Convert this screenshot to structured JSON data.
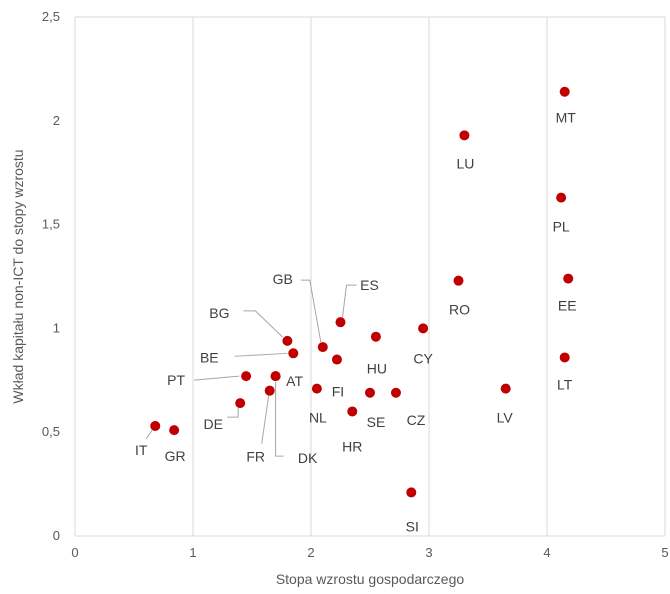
{
  "chart_data": {
    "type": "scatter",
    "title": "",
    "xlabel": "Stopa wzrostu gospodarczego",
    "ylabel": "Wkład kapitału non-ICT do stopy wzrostu",
    "xlim": [
      0,
      5
    ],
    "ylim": [
      0,
      2.5
    ],
    "x_ticks": [
      "0",
      "1",
      "2",
      "3",
      "4",
      "5"
    ],
    "y_ticks": [
      "0",
      "0,5",
      "1",
      "1,5",
      "2",
      "2,5"
    ],
    "grid": "vertical",
    "marker_color": "#c00000",
    "points": [
      {
        "label": "IT",
        "x": 0.68,
        "y": 0.53
      },
      {
        "label": "GR",
        "x": 0.84,
        "y": 0.51
      },
      {
        "label": "DE",
        "x": 1.4,
        "y": 0.64
      },
      {
        "label": "PT",
        "x": 1.45,
        "y": 0.77
      },
      {
        "label": "FR",
        "x": 1.65,
        "y": 0.7
      },
      {
        "label": "DK",
        "x": 1.7,
        "y": 0.77
      },
      {
        "label": "BG",
        "x": 1.8,
        "y": 0.94
      },
      {
        "label": "BE",
        "x": 1.85,
        "y": 0.88
      },
      {
        "label": "AT",
        "x": 1.7,
        "y": 0.77
      },
      {
        "label": "NL",
        "x": 2.05,
        "y": 0.71
      },
      {
        "label": "GB",
        "x": 2.1,
        "y": 0.91
      },
      {
        "label": "FI",
        "x": 2.22,
        "y": 0.85
      },
      {
        "label": "ES",
        "x": 2.25,
        "y": 1.03
      },
      {
        "label": "HR",
        "x": 2.35,
        "y": 0.6
      },
      {
        "label": "SE",
        "x": 2.5,
        "y": 0.69
      },
      {
        "label": "HU",
        "x": 2.55,
        "y": 0.96
      },
      {
        "label": "CZ",
        "x": 2.72,
        "y": 0.69
      },
      {
        "label": "SI",
        "x": 2.85,
        "y": 0.21
      },
      {
        "label": "CY",
        "x": 2.95,
        "y": 1.0
      },
      {
        "label": "RO",
        "x": 3.25,
        "y": 1.23
      },
      {
        "label": "LU",
        "x": 3.3,
        "y": 1.93
      },
      {
        "label": "LV",
        "x": 3.65,
        "y": 0.71
      },
      {
        "label": "PL",
        "x": 4.12,
        "y": 1.63
      },
      {
        "label": "MT",
        "x": 4.15,
        "y": 2.14
      },
      {
        "label": "LT",
        "x": 4.15,
        "y": 0.86
      },
      {
        "label": "EE",
        "x": 4.18,
        "y": 1.24
      }
    ]
  }
}
